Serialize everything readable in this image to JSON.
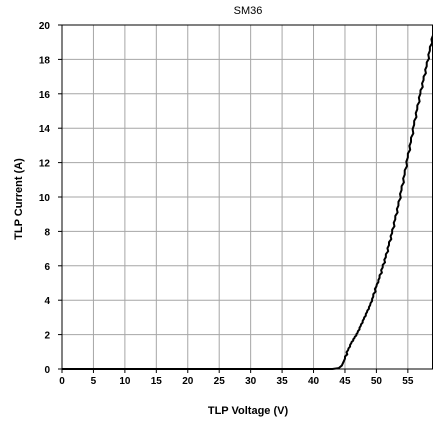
{
  "chart_data": {
    "type": "line",
    "title": "SM36",
    "xlabel": "TLP Voltage (V)",
    "ylabel": "TLP Current (A)",
    "xlim": [
      0,
      59
    ],
    "ylim": [
      0,
      20
    ],
    "x_ticks": [
      "0",
      "5",
      "10",
      "15",
      "20",
      "25",
      "30",
      "35",
      "40",
      "45",
      "50",
      "55"
    ],
    "y_ticks": [
      "0",
      "2",
      "4",
      "6",
      "8",
      "10",
      "12",
      "14",
      "16",
      "18",
      "20"
    ],
    "grid": true,
    "legend": "none",
    "series": [
      {
        "color": "#000000",
        "x": [
          0,
          10,
          20,
          30,
          40,
          43,
          44,
          44.5,
          45,
          45.5,
          46,
          46.5,
          47,
          47.5,
          48,
          48.5,
          49,
          49.5,
          50,
          50.5,
          51,
          51.5,
          52,
          52.5,
          53,
          53.5,
          54,
          54.5,
          55,
          55.5,
          56,
          56.5,
          57,
          57.5,
          58,
          58.5,
          59
        ],
        "y": [
          0,
          0,
          0,
          0,
          0,
          0,
          0.05,
          0.2,
          0.6,
          1.1,
          1.5,
          1.8,
          2.1,
          2.5,
          2.9,
          3.3,
          3.7,
          4.2,
          4.8,
          5.3,
          5.9,
          6.5,
          7.2,
          7.9,
          8.7,
          9.5,
          10.4,
          11.3,
          12.3,
          13.2,
          14.2,
          15.1,
          16.0,
          16.8,
          17.6,
          18.5,
          19.4
        ]
      }
    ]
  }
}
